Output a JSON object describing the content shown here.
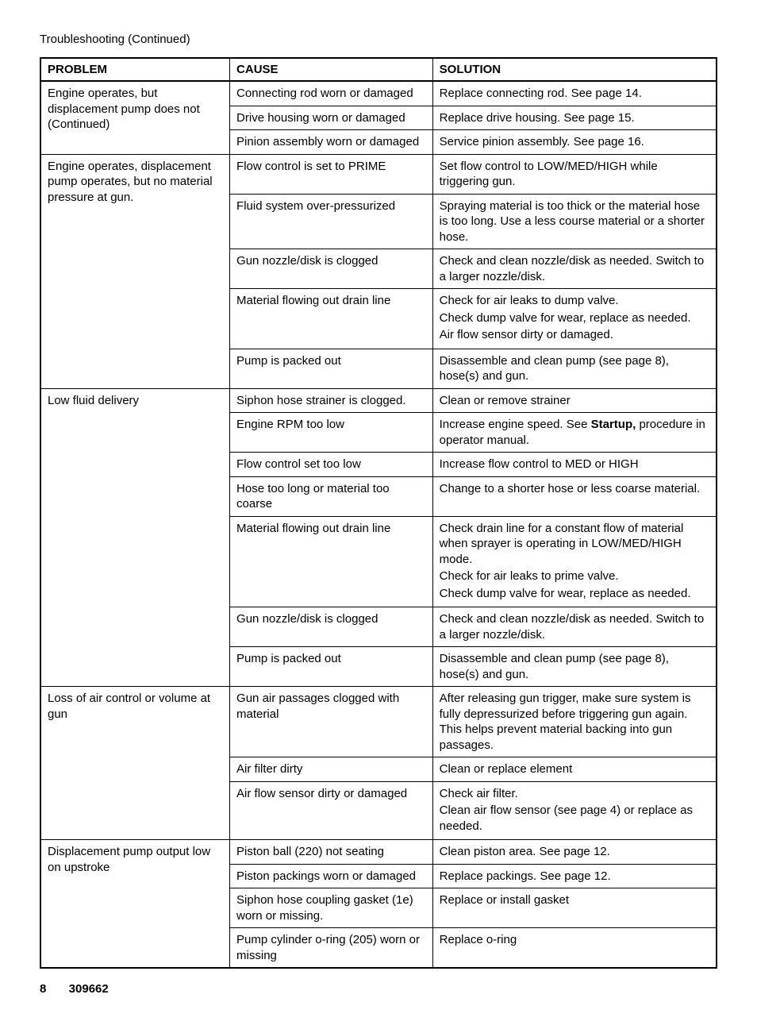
{
  "header": {
    "title": "Troubleshooting (Continued)"
  },
  "table": {
    "columns": [
      "PROBLEM",
      "CAUSE",
      "SOLUTION"
    ],
    "col_widths": [
      "28%",
      "30%",
      "42%"
    ],
    "groups": [
      {
        "problem": "Engine operates, but displacement pump does not (Continued)",
        "rows": [
          {
            "cause": "Connecting rod worn or damaged",
            "solution": "Replace connecting rod. See page 14."
          },
          {
            "cause": "Drive housing worn or damaged",
            "solution": "Replace drive housing. See page 15."
          },
          {
            "cause": "Pinion assembly worn or damaged",
            "solution": "Service pinion assembly. See page 16."
          }
        ]
      },
      {
        "problem": "Engine operates, displacement pump operates, but no material pressure at gun.",
        "rows": [
          {
            "cause": "Flow control is set to PRIME",
            "solution": "Set flow control to LOW/MED/HIGH while triggering gun."
          },
          {
            "cause": "Fluid system over-pressurized",
            "solution": "Spraying material is too thick or the material hose is too long.   Use a less course material or a shorter hose."
          },
          {
            "cause": "Gun nozzle/disk is clogged",
            "solution": "Check and clean nozzle/disk as needed. Switch to a larger nozzle/disk."
          },
          {
            "cause": "Material flowing out drain line",
            "solution_lines": [
              "Check for air leaks to dump valve.",
              "Check dump valve for wear, replace as needed.",
              "Air flow sensor dirty or damaged."
            ]
          },
          {
            "cause": "Pump is packed out",
            "solution": "Disassemble and clean pump (see page 8), hose(s) and gun."
          }
        ]
      },
      {
        "problem": "Low fluid delivery",
        "rows": [
          {
            "cause": "Siphon hose strainer is clogged.",
            "solution": "Clean or remove strainer"
          },
          {
            "cause": "Engine RPM too low",
            "solution_rich": {
              "pre": "Increase engine speed. See ",
              "bold": "Startup,",
              "post": " procedure in operator manual."
            }
          },
          {
            "cause": "Flow control set too low",
            "solution": "Increase flow control to MED or HIGH"
          },
          {
            "cause": "Hose too long or material too coarse",
            "solution": "Change to a shorter hose or less coarse material."
          },
          {
            "cause": "Material flowing out drain line",
            "solution_lines": [
              "Check drain line for a constant flow of material when sprayer is operating in LOW/MED/HIGH mode.",
              "Check for air leaks to prime valve.",
              "Check dump valve for wear, replace as needed."
            ]
          },
          {
            "cause": "Gun nozzle/disk is clogged",
            "solution": "Check and clean nozzle/disk as needed. Switch to a larger nozzle/disk."
          },
          {
            "cause": "Pump is packed out",
            "solution": "Disassemble and clean pump (see page 8), hose(s) and gun."
          }
        ]
      },
      {
        "problem": "Loss of air control or volume at gun",
        "rows": [
          {
            "cause": "Gun air passages clogged with material",
            "solution": "After releasing gun trigger, make sure system is fully depressurized before triggering gun again. This helps prevent material backing into gun passages."
          },
          {
            "cause": "Air filter dirty",
            "solution": "Clean or replace element"
          },
          {
            "cause": "Air flow sensor dirty or damaged",
            "solution_lines": [
              "Check air filter.",
              "Clean air flow sensor (see page 4) or replace as needed."
            ]
          }
        ]
      },
      {
        "problem": "Displacement pump output low on upstroke",
        "rows": [
          {
            "cause": "Piston ball (220) not seating",
            "solution": "Clean piston area. See page 12."
          },
          {
            "cause": "Piston packings worn or damaged",
            "solution": "Replace packings. See page 12."
          },
          {
            "cause": "Siphon hose coupling gasket (1e) worn or missing.",
            "solution": "Replace or install gasket"
          },
          {
            "cause": "Pump cylinder o-ring (205) worn or missing",
            "solution": "Replace o-ring"
          }
        ]
      }
    ]
  },
  "footer": {
    "page_number": "8",
    "doc_number": "309662"
  }
}
